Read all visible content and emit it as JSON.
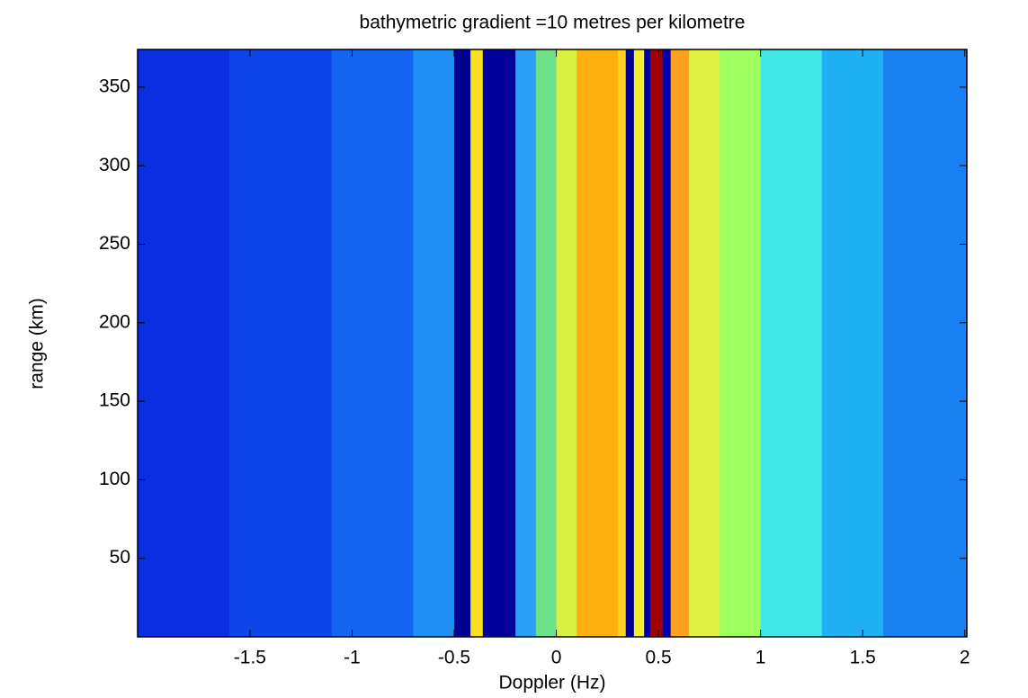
{
  "chart_data": {
    "type": "heatmap",
    "title": "bathymetric gradient =10 metres per kilometre",
    "x_label": "Doppler (Hz)",
    "y_label": "range (km)",
    "bins": [
      -2.05,
      -1.6,
      -1.1,
      -0.7,
      -0.5,
      -0.42,
      -0.36,
      -0.2,
      -0.1,
      0,
      0.1,
      0.3,
      0.34,
      0.38,
      0.43,
      0.46,
      0.52,
      0.56,
      0.65,
      0.8,
      1.0,
      1.3,
      1.6,
      2.01
    ],
    "colors": [
      "#0b2fe0",
      "#0d45ea",
      "#1466f2",
      "#1f8ff5",
      "#00008f",
      "#f8e020",
      "#00009a",
      "#2a9ff5",
      "#6fe08a",
      "#d8f040",
      "#ffb010",
      "#ffd020",
      "#000090",
      "#f0f030",
      "#0000a0",
      "#a00000",
      "#0000b0",
      "#ffa020",
      "#e0f040",
      "#a0ff60",
      "#40e8e8",
      "#1fb0f5",
      "#1880f0"
    ],
    "xlim": [
      -2.05,
      2.01
    ],
    "ylim": [
      0,
      374
    ],
    "xticks": [
      -1.5,
      -1,
      -0.5,
      0,
      0.5,
      1,
      1.5,
      2
    ],
    "yticks": [
      50,
      100,
      150,
      200,
      250,
      300,
      350
    ]
  }
}
